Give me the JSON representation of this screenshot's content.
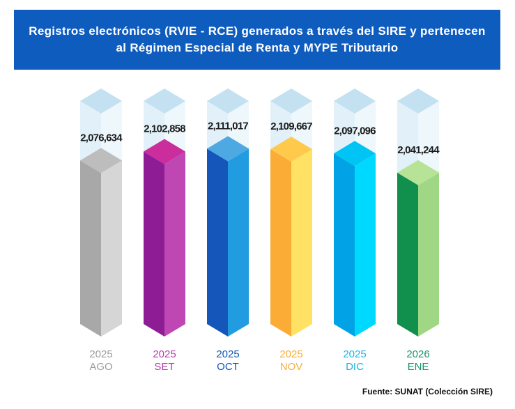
{
  "title": "Registros electrónicos (RVIE - RCE) generados a través del SIRE y pertenecen al Régimen Especial de Renta y MYPE Tributario",
  "source": "Fuente: SUNAT (Colección SIRE)",
  "colors": {
    "header_bg": "#0f5cbf",
    "ghost_top": "#c3e1f1",
    "ghost_left": "#e2f1f9",
    "ghost_right": "#eef7fb"
  },
  "chart_data": {
    "type": "bar",
    "title": "Registros electrónicos (RVIE - RCE) generados a través del SIRE y pertenecen al Régimen Especial de Renta y MYPE Tributario",
    "xlabel": "",
    "ylabel": "",
    "ylim": [
      1600000,
      2250000
    ],
    "grid": false,
    "categories": [
      "2025 AGO",
      "2025 SET",
      "2025 OCT",
      "2025 NOV",
      "2025 DIC",
      "2026 ENE"
    ],
    "series": [
      {
        "name": "Registros electrónicos",
        "values": [
          2076634,
          2102858,
          2111017,
          2109667,
          2097096,
          2041244
        ],
        "value_labels": [
          "2,076,634",
          "2,102,858",
          "2,111,017",
          "2,109,667",
          "2,097,096",
          "2,041,244"
        ]
      }
    ],
    "bars": [
      {
        "year": "2025",
        "month": "AGO",
        "color": "#9b9b9b",
        "left": "#a8a8a8",
        "right": "#d6d6d7",
        "top": "#bdbdbd"
      },
      {
        "year": "2025",
        "month": "SET",
        "color": "#b43cb0",
        "left": "#8e1c95",
        "right": "#be47b4",
        "top": "#cb2d9c"
      },
      {
        "year": "2025",
        "month": "OCT",
        "color": "#0f56b0",
        "left": "#1456b9",
        "right": "#229ce0",
        "top": "#4ea9e3"
      },
      {
        "year": "2025",
        "month": "NOV",
        "color": "#f6ae3a",
        "left": "#fbac36",
        "right": "#ffe264",
        "top": "#ffc94c"
      },
      {
        "year": "2025",
        "month": "DIC",
        "color": "#1ab4e6",
        "left": "#01a3e6",
        "right": "#00d9ff",
        "top": "#00c4f4"
      },
      {
        "year": "2026",
        "month": "ENE",
        "color": "#16966a",
        "left": "#118f4c",
        "right": "#a0d784",
        "top": "#b7e397"
      }
    ]
  }
}
